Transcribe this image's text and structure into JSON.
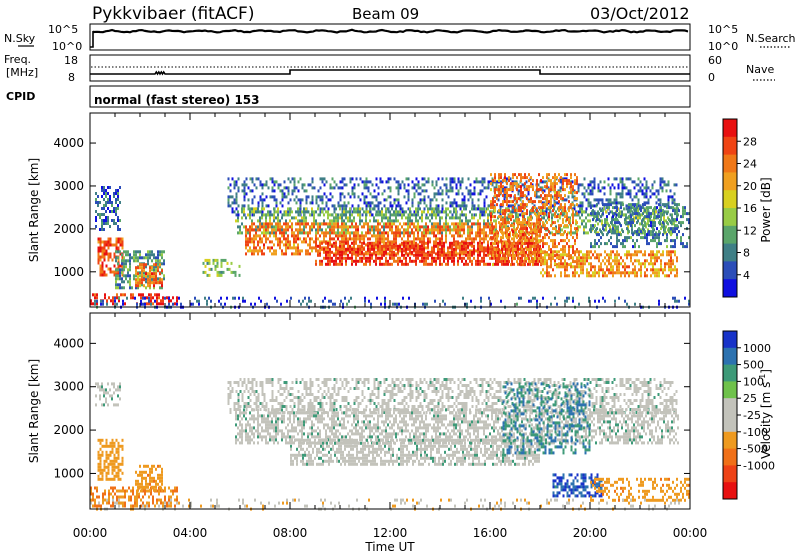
{
  "header": {
    "station": "Pykkvibaer (fitACF)",
    "beam": "Beam 09",
    "date": "03/Oct/2012"
  },
  "noise_panel": {
    "left_label": "N.Sky",
    "left_ticks": [
      "10^5",
      "10^0"
    ],
    "right_label": "N.Search",
    "right_ticks": [
      "10^5",
      "10^0"
    ]
  },
  "freq_panel": {
    "left_label_1": "Freq.",
    "left_label_2": "[MHz]",
    "left_ticks": [
      "18",
      "8"
    ],
    "right_label": "Nave",
    "right_ticks": [
      "60",
      "0"
    ]
  },
  "cpid": {
    "label": "CPID",
    "text": "normal (fast stereo) 153"
  },
  "colors": {
    "power_scale": [
      "#1010e0",
      "#2b4db8",
      "#3f7f86",
      "#5aa56a",
      "#98cc45",
      "#d8d020",
      "#f0a020",
      "#f07818",
      "#ef4414",
      "#e81010"
    ],
    "velocity_scale": [
      "#1833c8",
      "#2c72b0",
      "#3d9a78",
      "#6fc24b",
      "#c3c3bb",
      "#c3c3bb",
      "#ee9a20",
      "#f07018",
      "#ee4216",
      "#e81010"
    ],
    "ground_scatter": "#c3c3bb"
  },
  "chart_data": [
    {
      "type": "heatmap",
      "name": "power",
      "ylabel": "Slant Range [km]",
      "yticks": [
        1000,
        2000,
        3000,
        4000
      ],
      "ylim": [
        180,
        4700
      ],
      "xlim_hours": [
        0,
        24
      ],
      "colorbar": {
        "label": "Power [dB]",
        "ticks": [
          "4",
          "8",
          "12",
          "16",
          "20",
          "24",
          "28"
        ],
        "range": [
          0,
          32
        ]
      },
      "regions": [
        {
          "t": [
            0.0,
            3.5
          ],
          "r": [
            250,
            500
          ],
          "level": 30,
          "density": 0.45
        },
        {
          "t": [
            0.3,
            1.3
          ],
          "r": [
            900,
            1800
          ],
          "level": 26,
          "density": 0.6
        },
        {
          "t": [
            1.0,
            3.0
          ],
          "r": [
            600,
            1500
          ],
          "level": 10,
          "density": 0.55
        },
        {
          "t": [
            1.8,
            2.9
          ],
          "r": [
            700,
            1200
          ],
          "level": 24,
          "density": 0.65
        },
        {
          "t": [
            0.2,
            1.2
          ],
          "r": [
            2000,
            3000
          ],
          "level": 6,
          "density": 0.4
        },
        {
          "t": [
            4.5,
            6.0
          ],
          "r": [
            900,
            1300
          ],
          "level": 14,
          "density": 0.45
        },
        {
          "t": [
            5.5,
            23.5
          ],
          "r": [
            2350,
            3200
          ],
          "level": 6,
          "density": 0.35
        },
        {
          "t": [
            5.8,
            23.5
          ],
          "r": [
            1900,
            2500
          ],
          "level": 12,
          "density": 0.45
        },
        {
          "t": [
            6.2,
            18.0
          ],
          "r": [
            1400,
            2150
          ],
          "level": 24,
          "density": 0.6
        },
        {
          "t": [
            9.0,
            18.0
          ],
          "r": [
            1200,
            1700
          ],
          "level": 28,
          "density": 0.65
        },
        {
          "t": [
            16.0,
            19.5
          ],
          "r": [
            1200,
            3300
          ],
          "level": 24,
          "density": 0.45
        },
        {
          "t": [
            18.0,
            23.5
          ],
          "r": [
            900,
            1500
          ],
          "level": 22,
          "density": 0.55
        },
        {
          "t": [
            20.0,
            24.0
          ],
          "r": [
            1600,
            2600
          ],
          "level": 8,
          "density": 0.4
        },
        {
          "t": [
            0.0,
            24.0
          ],
          "r": [
            200,
            420
          ],
          "level": 5,
          "density": 0.18
        }
      ]
    },
    {
      "type": "heatmap",
      "name": "velocity",
      "ylabel": "Slant Range [km]",
      "yticks": [
        1000,
        2000,
        3000,
        4000
      ],
      "ylim": [
        180,
        4700
      ],
      "xlim_hours": [
        0,
        24
      ],
      "xticks": [
        "00:00",
        "04:00",
        "08:00",
        "12:00",
        "16:00",
        "20:00",
        "00:00"
      ],
      "xlabel": "Time UT",
      "colorbar": {
        "label": "Velocity [m s",
        "label_superscript": "-1",
        "label_close": "]",
        "ticks": [
          "1000",
          "500",
          "100",
          "25",
          "-25",
          "-100",
          "-500",
          "-1000"
        ]
      },
      "regions": [
        {
          "t": [
            0.0,
            3.5
          ],
          "r": [
            250,
            700
          ],
          "level": -300,
          "density": 0.5
        },
        {
          "t": [
            0.3,
            1.3
          ],
          "r": [
            900,
            1800
          ],
          "level": -150,
          "density": 0.55
        },
        {
          "t": [
            1.8,
            2.9
          ],
          "r": [
            600,
            1200
          ],
          "level": -200,
          "density": 0.55
        },
        {
          "t": [
            0.2,
            1.2
          ],
          "r": [
            2600,
            3100
          ],
          "level": 0,
          "density": 0.4
        },
        {
          "t": [
            5.5,
            23.5
          ],
          "r": [
            2400,
            3200
          ],
          "level": 0,
          "density": 0.45
        },
        {
          "t": [
            5.8,
            23.5
          ],
          "r": [
            1700,
            2500
          ],
          "level": 0,
          "density": 0.55
        },
        {
          "t": [
            8.0,
            18.0
          ],
          "r": [
            1200,
            1800
          ],
          "level": 0,
          "density": 0.6
        },
        {
          "t": [
            16.5,
            20.0
          ],
          "r": [
            1500,
            3100
          ],
          "level": 300,
          "density": 0.35
        },
        {
          "t": [
            18.5,
            20.5
          ],
          "r": [
            500,
            1000
          ],
          "level": 700,
          "density": 0.6
        },
        {
          "t": [
            20.0,
            24.0
          ],
          "r": [
            400,
            900
          ],
          "level": -200,
          "density": 0.35
        },
        {
          "t": [
            0.0,
            24.0
          ],
          "r": [
            200,
            420
          ],
          "level": -50,
          "density": 0.15
        }
      ]
    }
  ]
}
